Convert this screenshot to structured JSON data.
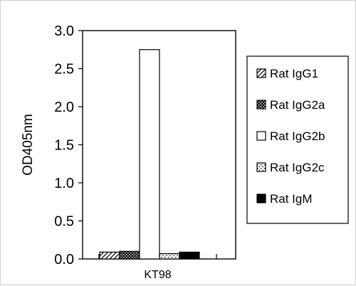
{
  "chart_data": {
    "type": "bar",
    "categories": [
      "KT98"
    ],
    "ylabel": "OD405nm",
    "ylim": [
      0,
      3.0
    ],
    "yticks": [
      "0.0",
      "0.5",
      "1.0",
      "1.5",
      "2.0",
      "2.5",
      "3.0"
    ],
    "series": [
      {
        "name": "Rat IgG1",
        "values": [
          0.09
        ],
        "pattern": "hatch"
      },
      {
        "name": "Rat IgG2a",
        "values": [
          0.1
        ],
        "pattern": "dots-dark"
      },
      {
        "name": "Rat IgG2b",
        "values": [
          2.75
        ],
        "pattern": "white"
      },
      {
        "name": "Rat IgG2c",
        "values": [
          0.07
        ],
        "pattern": "dots-light"
      },
      {
        "name": "Rat IgM",
        "values": [
          0.09
        ],
        "pattern": "solid"
      }
    ],
    "legend_position": "right",
    "colors": {
      "ink": "#000000",
      "background": "#ffffff"
    }
  }
}
